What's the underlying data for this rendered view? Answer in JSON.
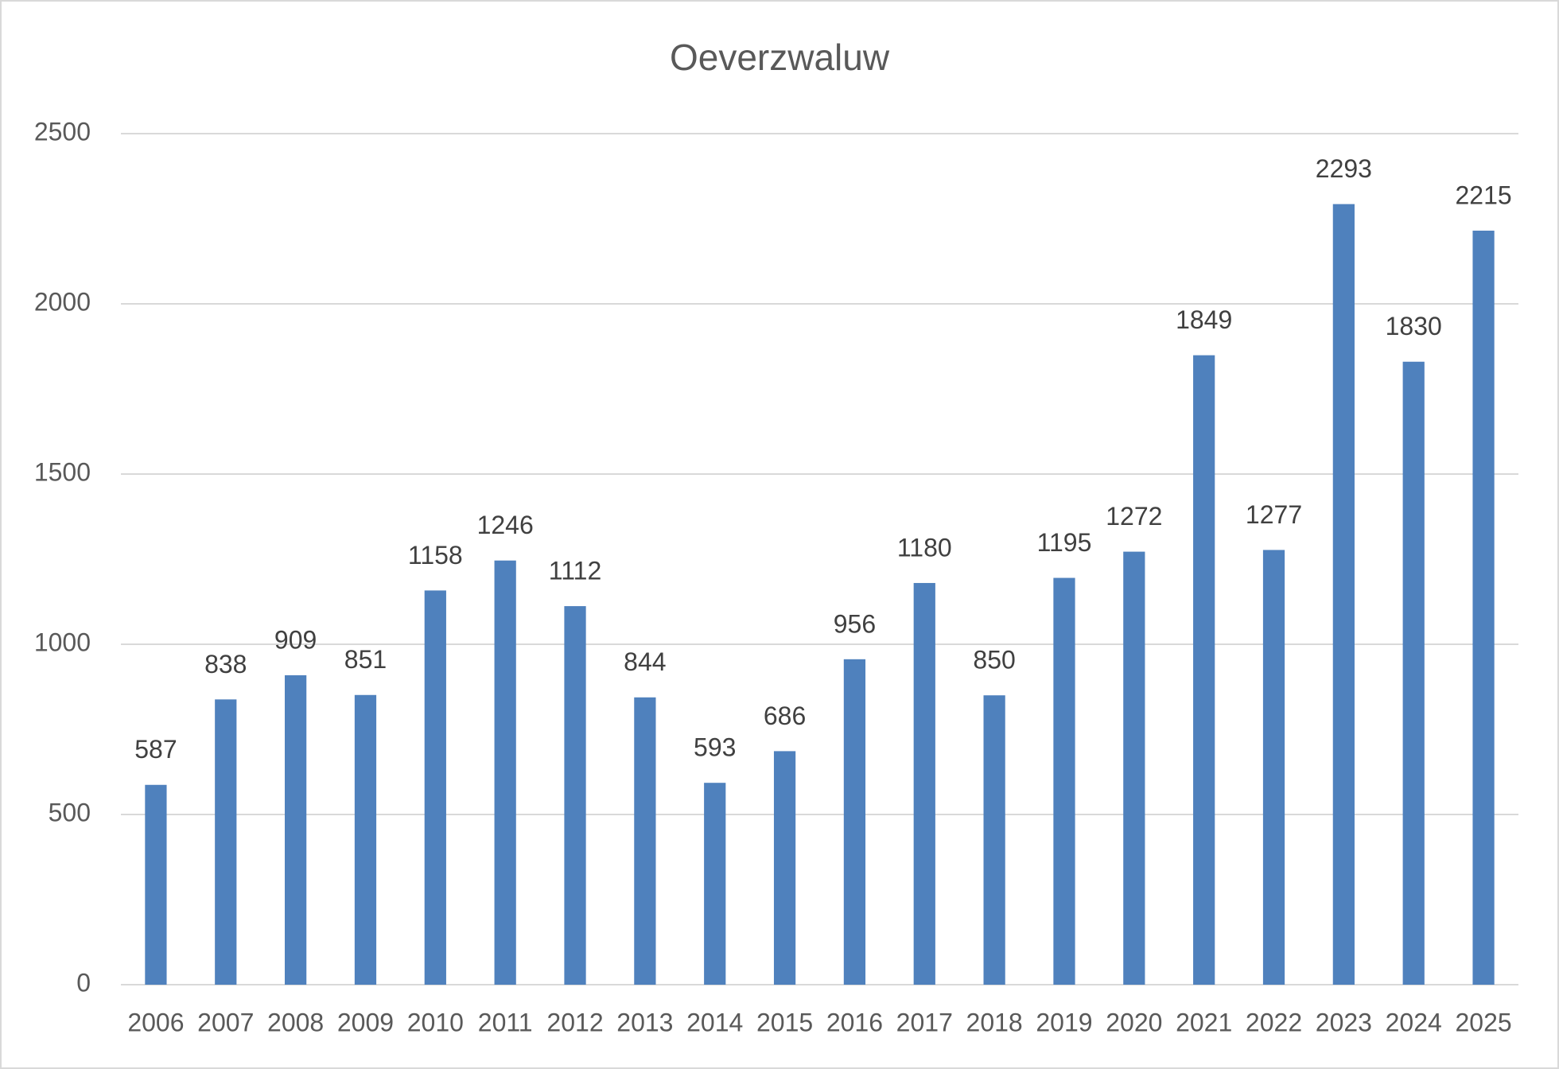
{
  "chart_data": {
    "type": "bar",
    "title": "Oeverzwaluw",
    "categories": [
      "2006",
      "2007",
      "2008",
      "2009",
      "2010",
      "2011",
      "2012",
      "2013",
      "2014",
      "2015",
      "2016",
      "2017",
      "2018",
      "2019",
      "2020",
      "2021",
      "2022",
      "2023",
      "2024",
      "2025"
    ],
    "values": [
      587,
      838,
      909,
      851,
      1158,
      1246,
      1112,
      844,
      593,
      686,
      956,
      1180,
      850,
      1195,
      1272,
      1849,
      1277,
      2293,
      1830,
      2215
    ],
    "color": "#4f81bd",
    "ylim": [
      0,
      2500
    ],
    "yticks": [
      0,
      500,
      1000,
      1500,
      2000,
      2500
    ],
    "grid": true
  }
}
